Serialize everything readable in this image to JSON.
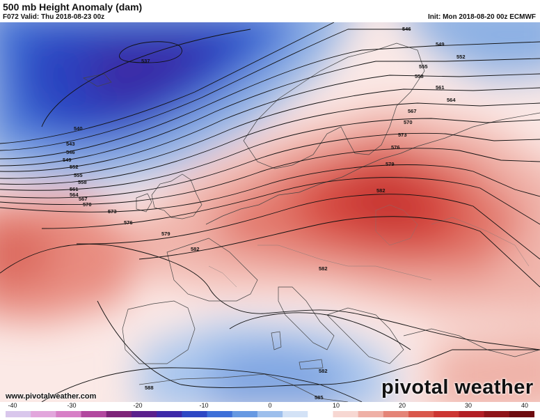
{
  "header": {
    "title": "500 mb Height Anomaly (dam)",
    "valid": "F072 Valid: Thu 2018-08-23 00z",
    "init": "Init: Mon 2018-08-20 00z ECMWF"
  },
  "footer": {
    "website": "www.pivotalweather.com",
    "logo": "pivotal weather"
  },
  "colorbar": {
    "ticks": [
      "-40",
      "-30",
      "-20",
      "-10",
      "0",
      "10",
      "20",
      "30",
      "40"
    ],
    "min": -40,
    "max": 40,
    "colors": [
      "#d9c7ec",
      "#e2a6dc",
      "#d77fc6",
      "#b2489f",
      "#7d2378",
      "#5a1f8c",
      "#3c28a8",
      "#2d47c4",
      "#3d6fd8",
      "#6699e2",
      "#9dbfec",
      "#d3e2f6",
      "#ffffff",
      "#f7d7d2",
      "#efb0a6",
      "#e48477",
      "#d9574b",
      "#cc3532",
      "#b21f25",
      "#8e1419",
      "#6c0c10"
    ]
  },
  "contours": [
    {
      "label": "537"
    },
    {
      "label": "540"
    },
    {
      "label": "543"
    },
    {
      "label": "546"
    },
    {
      "label": "549"
    },
    {
      "label": "552"
    },
    {
      "label": "555"
    },
    {
      "label": "558"
    },
    {
      "label": "561"
    },
    {
      "label": "564"
    },
    {
      "label": "567"
    },
    {
      "label": "570"
    },
    {
      "label": "573"
    },
    {
      "label": "576"
    },
    {
      "label": "579"
    },
    {
      "label": "582"
    },
    {
      "label": "585"
    },
    {
      "label": "588"
    }
  ]
}
